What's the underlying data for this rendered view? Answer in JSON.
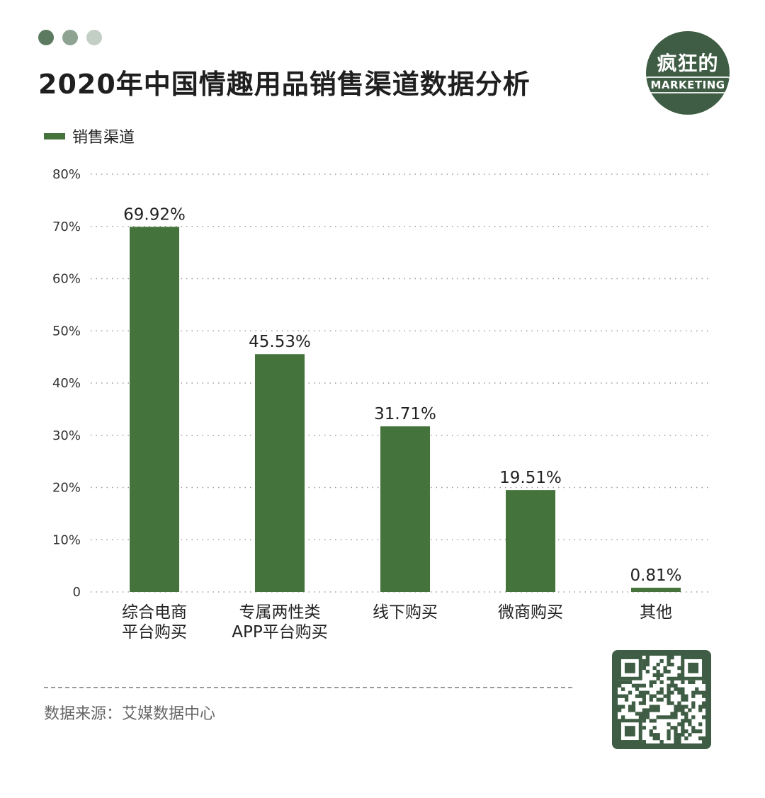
{
  "header": {
    "title": "2020年中国情趣用品销售渠道数据分析",
    "dot_colors": [
      "#5b7a60",
      "#8ea391",
      "#c3cfc4"
    ]
  },
  "logo": {
    "text_cn": "疯狂的",
    "text_en": "MARKETING",
    "color": "#3f5d44"
  },
  "legend": {
    "label": "销售渠道",
    "color": "#44743c"
  },
  "footer": {
    "source": "数据来源：艾媒数据中心",
    "qr_icon": "qr-code-icon"
  },
  "chart_data": {
    "type": "bar",
    "categories": [
      [
        "综合电商",
        "平台购买"
      ],
      [
        "专属两性类",
        "APP平台购买"
      ],
      [
        "线下购买"
      ],
      [
        "微商购买"
      ],
      [
        "其他"
      ]
    ],
    "values": [
      69.92,
      45.53,
      31.71,
      19.51,
      0.81
    ],
    "value_labels": [
      "69.92%",
      "45.53%",
      "31.71%",
      "19.51%",
      "0.81%"
    ],
    "series": [
      {
        "name": "销售渠道",
        "values": [
          69.92,
          45.53,
          31.71,
          19.51,
          0.81
        ]
      }
    ],
    "ylim": [
      0,
      80
    ],
    "yticks": [
      0,
      10,
      20,
      30,
      40,
      50,
      60,
      70,
      80
    ],
    "ytick_labels": [
      "0",
      "10%",
      "20%",
      "30%",
      "40%",
      "50%",
      "60%",
      "70%",
      "80%"
    ],
    "grid": true,
    "grid_style": "dotted",
    "legend_position": "top-left",
    "bar_color": "#44743c"
  }
}
